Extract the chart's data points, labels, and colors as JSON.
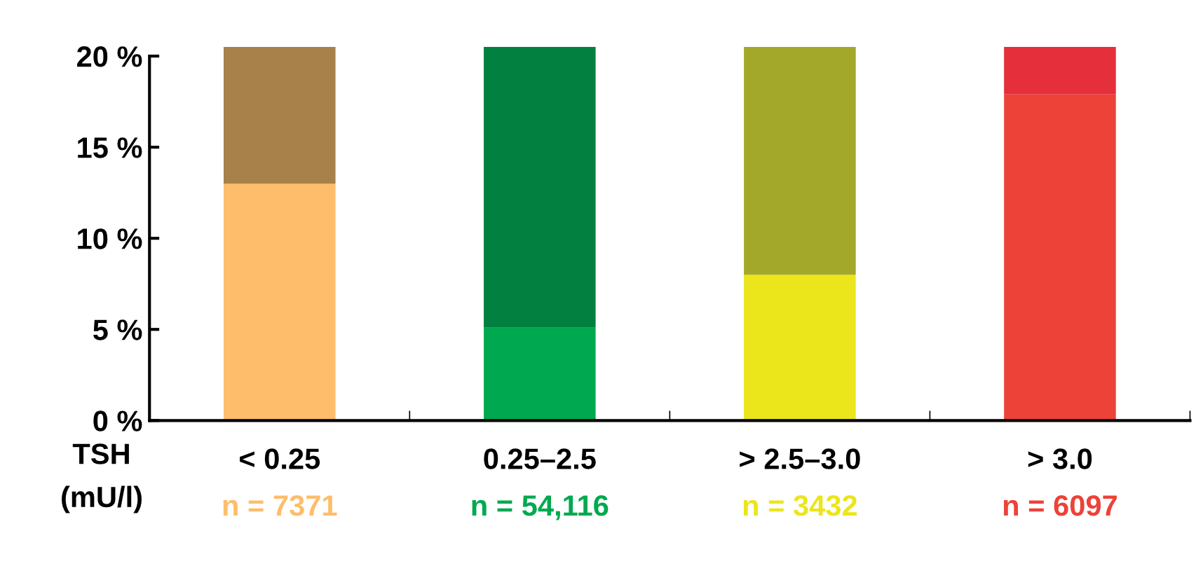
{
  "chart_data": {
    "type": "bar",
    "stacked": true,
    "categories": [
      "< 0.25",
      "0.25–2.5",
      "> 2.5–3.0",
      "> 3.0"
    ],
    "xlabel": "TSH\n(mU/l)",
    "series": [
      {
        "colors": [
          "#fdbd6b",
          "#00a94f",
          "#ebe51c",
          "#ec4238"
        ],
        "values": [
          13.0,
          5.1,
          8.0,
          17.9
        ]
      },
      {
        "colors": [
          "#a8804a",
          "#02803f",
          "#a4a82a",
          "#e52f3a"
        ],
        "values": [
          7.5,
          15.4,
          12.5,
          2.6
        ]
      }
    ],
    "ylim": [
      0,
      20.5
    ],
    "yticks": [
      {
        "value": 0,
        "label": "0 %"
      },
      {
        "value": 5,
        "label": "5 %"
      },
      {
        "value": 10,
        "label": "10 %"
      },
      {
        "value": 15,
        "label": "15 %"
      },
      {
        "value": 20,
        "label": "20 %"
      }
    ],
    "annotations": [
      "n = 7371",
      "n = 54,116",
      "n = 3432",
      "n = 6097"
    ],
    "grid": false
  }
}
